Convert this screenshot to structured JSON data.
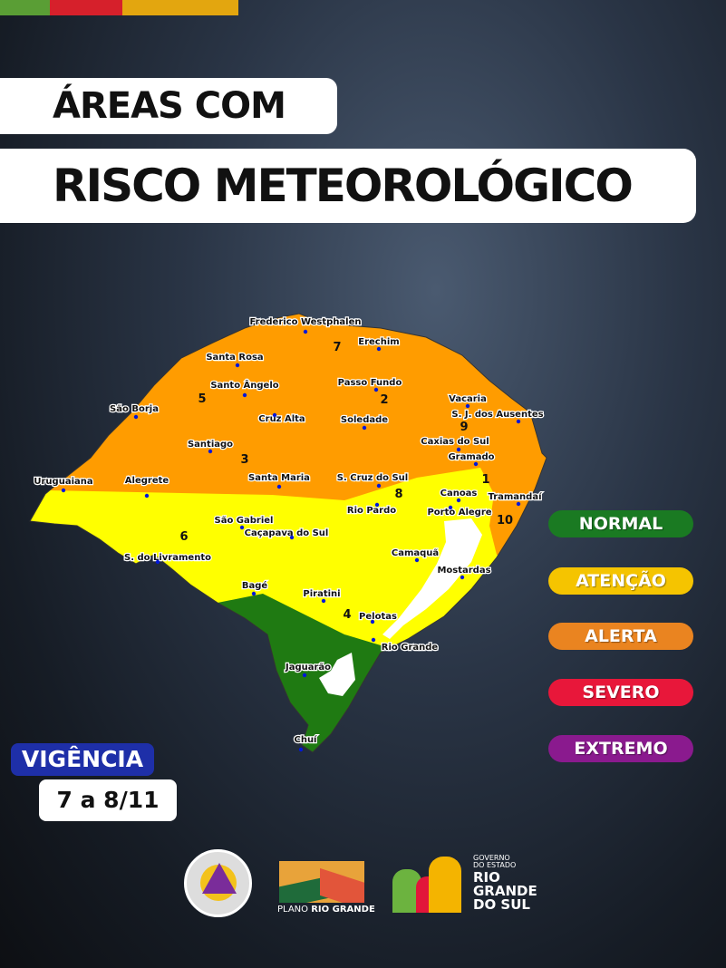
{
  "header": {
    "stripe_colors": [
      "#5a9e35",
      "#d6202b",
      "#e3a60f"
    ],
    "title_line1": "ÁREAS COM",
    "title_line2": "RISCO METEOROLÓGICO"
  },
  "map": {
    "zone_colors": {
      "normal": "#1f7a12",
      "atencao": "#ffff00",
      "alerta": "#ff9c00",
      "water": "#ffffff"
    },
    "region_numbers": [
      "1",
      "2",
      "3",
      "4",
      "5",
      "6",
      "7",
      "8",
      "9",
      "10"
    ],
    "cities": [
      "Frederico Westphalen",
      "Erechim",
      "Santa Rosa",
      "Santo Ângelo",
      "Passo Fundo",
      "Vacaria",
      "São Borja",
      "Cruz Alta",
      "Soledade",
      "S. J. dos Ausentes",
      "Santiago",
      "Caxias do Sul",
      "Gramado",
      "Uruguaiana",
      "Alegrete",
      "Santa Maria",
      "S. Cruz do Sul",
      "Canoas",
      "Tramandaí",
      "Rio Pardo",
      "Porto Alegre",
      "São Gabriel",
      "Caçapava do Sul",
      "S. do Livramento",
      "Camaquã",
      "Mostardas",
      "Bagé",
      "Piratini",
      "Pelotas",
      "Rio Grande",
      "Jaguarão",
      "Chuí"
    ]
  },
  "legend": [
    {
      "label": "NORMAL",
      "color": "#1a7a22"
    },
    {
      "label": "ATENÇÃO",
      "color": "#f5c400"
    },
    {
      "label": "ALERTA",
      "color": "#ea8420"
    },
    {
      "label": "SEVERO",
      "color": "#e8173a"
    },
    {
      "label": "EXTREMO",
      "color": "#8a1a8e"
    }
  ],
  "validity": {
    "label": "VIGÊNCIA",
    "dates": "7 a 8/11"
  },
  "logos": {
    "defesa": "CASA MILITAR DEFESA CIVIL - RS",
    "plano_prefix": "PLANO",
    "plano_name": "RIO GRANDE",
    "gov_small1": "GOVERNO",
    "gov_small2": "DO ESTADO",
    "gov_l1": "RIO",
    "gov_l2": "GRANDE",
    "gov_l3": "DO SUL"
  }
}
